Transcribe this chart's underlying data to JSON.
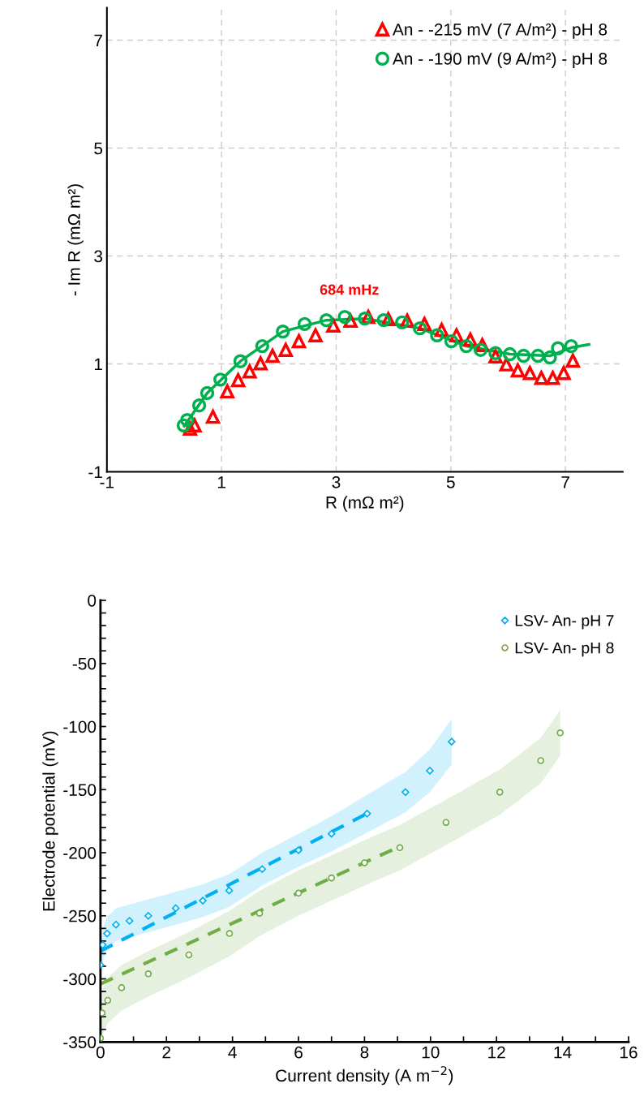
{
  "chart_data": [
    {
      "type": "scatter",
      "xlabel": "R (mΩ m²)",
      "ylabel": "- Im R (mΩ m²)",
      "xlim": [
        -1,
        8
      ],
      "ylim": [
        -1,
        7.6
      ],
      "xticks": [
        -1,
        1,
        3,
        5,
        7
      ],
      "yticks": [
        -1,
        1,
        3,
        5,
        7
      ],
      "grid": true,
      "legend": "top right",
      "annotations": [
        "684 mHz"
      ],
      "series": [
        {
          "name": "An - -215 mV (7 A/m²) - pH 8",
          "color": "#ff0000",
          "marker": "triangle",
          "x": [
            0.45,
            0.53,
            0.85,
            1.1,
            1.29,
            1.49,
            1.68,
            1.89,
            2.12,
            2.35,
            2.64,
            2.95,
            3.25,
            3.56,
            3.91,
            4.24,
            4.54,
            4.84,
            5.1,
            5.34,
            5.55,
            5.78,
            5.97,
            6.17,
            6.38,
            6.58,
            6.78,
            6.97,
            7.13
          ],
          "values": [
            -0.2,
            -0.14,
            0.02,
            0.49,
            0.7,
            0.86,
            1.01,
            1.15,
            1.26,
            1.42,
            1.53,
            1.71,
            1.8,
            1.87,
            1.83,
            1.8,
            1.74,
            1.63,
            1.53,
            1.45,
            1.35,
            1.14,
            0.99,
            0.88,
            0.83,
            0.74,
            0.74,
            0.83,
            1.06
          ]
        },
        {
          "name": "An - -190 mV (9 A/m²) - pH 8",
          "color": "#00b050",
          "marker": "circle",
          "x": [
            0.34,
            0.4,
            0.61,
            0.75,
            0.98,
            1.33,
            1.71,
            2.07,
            2.45,
            2.83,
            3.15,
            3.5,
            3.83,
            4.15,
            4.46,
            4.76,
            5.01,
            5.27,
            5.52,
            5.78,
            6.03,
            6.27,
            6.52,
            6.73,
            6.87,
            7.1
          ],
          "values": [
            -0.14,
            -0.04,
            0.23,
            0.46,
            0.71,
            1.05,
            1.33,
            1.6,
            1.74,
            1.81,
            1.87,
            1.84,
            1.81,
            1.77,
            1.66,
            1.53,
            1.42,
            1.33,
            1.26,
            1.2,
            1.18,
            1.15,
            1.15,
            1.12,
            1.29,
            1.33
          ]
        },
        {
          "type": "line",
          "color": "#00b050",
          "line_style": "solid",
          "x": [
            0.35,
            0.75,
            1.33,
            2.07,
            2.83,
            3.5,
            4.46,
            5.27,
            6.03,
            6.73,
            7.1,
            7.41
          ],
          "values": [
            -0.15,
            0.46,
            1.05,
            1.6,
            1.81,
            1.84,
            1.66,
            1.33,
            1.18,
            1.15,
            1.3,
            1.36
          ]
        }
      ]
    },
    {
      "type": "scatter",
      "xlabel": "Current density (A m$^{−2}$)",
      "ylabel": "Electrode potential (mV)",
      "xlim": [
        0,
        16
      ],
      "ylim": [
        -350,
        0
      ],
      "xticks": [
        0,
        {
          "value": 1,
          "label": null
        },
        2,
        {
          "value": 3,
          "label": null
        },
        4,
        {
          "value": 5,
          "label": null
        },
        6,
        {
          "value": 7,
          "label": null
        },
        8,
        {
          "value": 9,
          "label": null
        },
        10,
        {
          "value": 11,
          "label": null
        },
        12,
        {
          "value": 13,
          "label": null
        },
        14,
        {
          "value": 15,
          "label": null
        },
        16
      ],
      "yticks": [
        0,
        {
          "value": -10,
          "label": null
        },
        {
          "value": -20,
          "label": null
        },
        {
          "value": -30,
          "label": null
        },
        {
          "value": -40,
          "label": null
        },
        -50,
        {
          "value": -60,
          "label": null
        },
        {
          "value": -70,
          "label": null
        },
        {
          "value": -80,
          "label": null
        },
        {
          "value": -90,
          "label": null
        },
        -100,
        {
          "value": -110,
          "label": null
        },
        {
          "value": -120,
          "label": null
        },
        {
          "value": -130,
          "label": null
        },
        {
          "value": -140,
          "label": null
        },
        -150,
        {
          "value": -160,
          "label": null
        },
        {
          "value": -170,
          "label": null
        },
        {
          "value": -180,
          "label": null
        },
        {
          "value": -190,
          "label": null
        },
        -200,
        {
          "value": -210,
          "label": null
        },
        {
          "value": -220,
          "label": null
        },
        {
          "value": -230,
          "label": null
        },
        {
          "value": -240,
          "label": null
        },
        -250,
        {
          "value": -260,
          "label": null
        },
        {
          "value": -270,
          "label": null
        },
        {
          "value": -280,
          "label": null
        },
        {
          "value": -290,
          "label": null
        },
        -300,
        {
          "value": -310,
          "label": null
        },
        {
          "value": -320,
          "label": null
        },
        {
          "value": -330,
          "label": null
        },
        {
          "value": -340,
          "label": null
        },
        -350
      ],
      "grid": false,
      "legend": "top right",
      "series": [
        {
          "name": "LSV- An- pH 7",
          "color": "#00b0f0",
          "marker": "diamond",
          "x": [
            0,
            0.07,
            0.2,
            0.47,
            0.88,
            1.45,
            2.28,
            3.1,
            3.9,
            4.9,
            6,
            7,
            8.08,
            9.24,
            9.98,
            10.64
          ],
          "values": [
            -289,
            -273,
            -264,
            -257,
            -254,
            -250,
            -244,
            -238,
            -230,
            -213,
            -198,
            -185,
            -169,
            -152,
            -135,
            -112
          ],
          "lower": [
            -302,
            -286,
            -277,
            -270,
            -267,
            -263,
            -257,
            -251,
            -243,
            -226,
            -211,
            -199,
            -184,
            -168,
            -152,
            -130
          ],
          "upper": [
            -276,
            -260,
            -251,
            -244,
            -241,
            -237,
            -231,
            -225,
            -217,
            -200,
            -185,
            -171,
            -154,
            -136,
            -118,
            -94
          ]
        },
        {
          "name": "LSV- An- pH 8",
          "color": "#70ad47",
          "marker": "circle",
          "x": [
            0,
            0.05,
            0.22,
            0.64,
            1.45,
            2.68,
            3.91,
            4.82,
            6,
            7,
            8,
            9.07,
            10.47,
            12.1,
            13.34,
            13.93
          ],
          "values": [
            -347,
            -327,
            -317,
            -307,
            -296,
            -281,
            -264,
            -248,
            -232,
            -220,
            -208,
            -196,
            -176,
            -152,
            -127,
            -105
          ],
          "lower": [
            -350,
            -345,
            -335,
            -325,
            -314,
            -299,
            -282,
            -266,
            -250,
            -238,
            -226,
            -214,
            -194,
            -170,
            -145,
            -123
          ],
          "upper": [
            -330,
            -309,
            -299,
            -289,
            -278,
            -263,
            -246,
            -230,
            -214,
            -202,
            -190,
            -178,
            -158,
            -134,
            -109,
            -87
          ]
        },
        {
          "type": "line",
          "color": "#00b0f0",
          "line_style": "dashed",
          "x": [
            0,
            8
          ],
          "values": [
            -278,
            -170
          ]
        },
        {
          "type": "line",
          "color": "#70ad47",
          "line_style": "dashed",
          "x": [
            0,
            9.07
          ],
          "values": [
            -304,
            -195
          ]
        }
      ]
    }
  ]
}
